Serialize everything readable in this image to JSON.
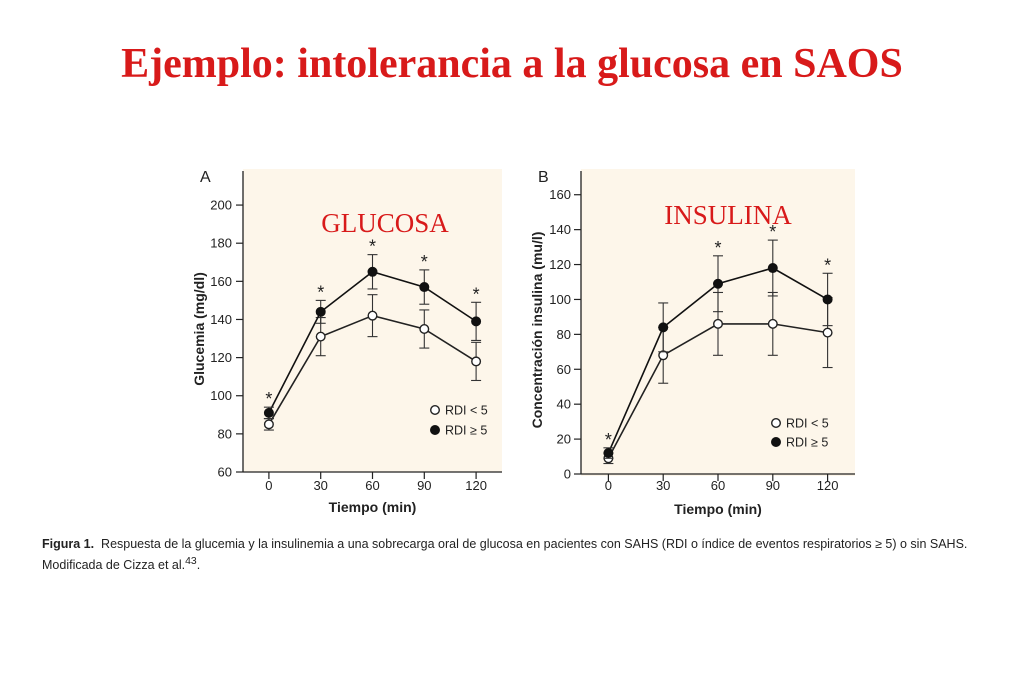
{
  "slide": {
    "title": "Ejemplo: intolerancia a la glucosa en SAOS"
  },
  "caption": {
    "label": "Figura 1.",
    "text": "Respuesta de la glucemia y la insulinemia a una sobrecarga oral de glucosa en pacientes con SAHS (RDI o índice de eventos respiratorios ≥ 5) o sin SAHS. Modificada de Cizza et al.",
    "ref": "43",
    "end": "."
  },
  "chart_data": [
    {
      "type": "line",
      "panel_letter": "A",
      "annotation": "GLUCOSA",
      "xlabel": "Tiempo (min)",
      "ylabel": "Glucemia (mg/dl)",
      "x": [
        0,
        30,
        60,
        90,
        120
      ],
      "xlim": [
        -15,
        135
      ],
      "ylim": [
        60,
        210
      ],
      "yticks": [
        60,
        80,
        100,
        120,
        140,
        160,
        180,
        200
      ],
      "legend_position": "bottom-right",
      "grid": false,
      "series": [
        {
          "name": "RDI < 5",
          "marker": "open-circle",
          "color": "#222222",
          "values": [
            85,
            131,
            142,
            135,
            118
          ],
          "err": [
            3,
            10,
            11,
            10,
            10
          ]
        },
        {
          "name": "RDI ≥ 5",
          "marker": "filled-circle",
          "color": "#111111",
          "values": [
            91,
            144,
            165,
            157,
            139
          ],
          "err": [
            3,
            6,
            9,
            9,
            10
          ]
        }
      ],
      "significance_x": [
        0,
        30,
        60,
        90,
        120
      ],
      "significance_mark": "*"
    },
    {
      "type": "line",
      "panel_letter": "B",
      "annotation": "INSULINA",
      "xlabel": "Tiempo (min)",
      "ylabel": "Concentración insulina (mu/l)",
      "x": [
        0,
        30,
        60,
        90,
        120
      ],
      "xlim": [
        -15,
        135
      ],
      "ylim": [
        0,
        165
      ],
      "yticks": [
        0,
        20,
        40,
        60,
        80,
        100,
        120,
        140,
        160
      ],
      "legend_position": "bottom-right",
      "grid": false,
      "series": [
        {
          "name": "RDI < 5",
          "marker": "open-circle",
          "color": "#222222",
          "values": [
            9,
            68,
            86,
            86,
            81
          ],
          "err": [
            3,
            16,
            18,
            18,
            20
          ]
        },
        {
          "name": "RDI ≥ 5",
          "marker": "filled-circle",
          "color": "#111111",
          "values": [
            12,
            84,
            109,
            118,
            100
          ],
          "err": [
            3,
            14,
            16,
            16,
            15
          ]
        }
      ],
      "significance_x": [
        0,
        60,
        90,
        120
      ],
      "significance_mark": "*"
    }
  ]
}
